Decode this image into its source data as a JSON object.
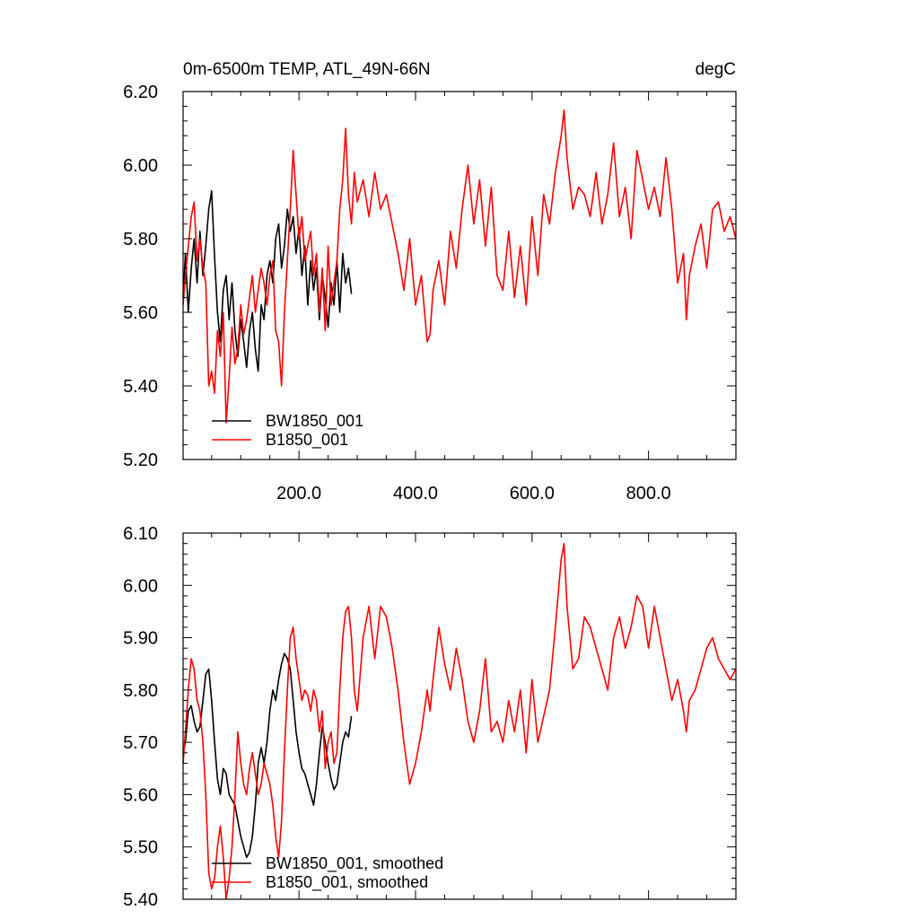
{
  "chart_data": [
    {
      "type": "line",
      "title": "0m-6500m TEMP, ATL_49N-66N",
      "units": "degC",
      "xlim": [
        1,
        950
      ],
      "ylim": [
        5.2,
        6.2
      ],
      "grid": false,
      "legend_position": "bottom-left",
      "xtick_values": [
        200,
        400,
        600,
        800
      ],
      "xtick_labels": [
        "200.0",
        "400.0",
        "600.0",
        "800.0"
      ],
      "ytick_values": [
        5.2,
        5.4,
        5.6,
        5.8,
        6.0,
        6.2
      ],
      "ytick_labels": [
        "5.20",
        "5.40",
        "5.60",
        "5.80",
        "6.00",
        "6.20"
      ],
      "series": [
        {
          "name": "BW1850_001",
          "color": "#000000",
          "x": [
            1,
            5,
            10,
            15,
            20,
            25,
            30,
            35,
            40,
            45,
            50,
            55,
            60,
            65,
            70,
            75,
            80,
            85,
            90,
            95,
            100,
            105,
            110,
            115,
            120,
            125,
            130,
            135,
            140,
            145,
            150,
            155,
            160,
            165,
            170,
            175,
            180,
            185,
            190,
            195,
            200,
            205,
            210,
            215,
            220,
            225,
            230,
            235,
            240,
            245,
            250,
            255,
            260,
            265,
            270,
            275,
            280,
            285,
            290
          ],
          "y": [
            5.64,
            5.76,
            5.6,
            5.72,
            5.8,
            5.68,
            5.82,
            5.7,
            5.78,
            5.88,
            5.93,
            5.75,
            5.6,
            5.52,
            5.66,
            5.7,
            5.58,
            5.68,
            5.55,
            5.48,
            5.58,
            5.52,
            5.45,
            5.55,
            5.6,
            5.5,
            5.44,
            5.62,
            5.58,
            5.7,
            5.74,
            5.68,
            5.8,
            5.84,
            5.72,
            5.78,
            5.88,
            5.82,
            5.86,
            5.76,
            5.83,
            5.7,
            5.78,
            5.62,
            5.74,
            5.66,
            5.72,
            5.58,
            5.7,
            5.64,
            5.56,
            5.68,
            5.62,
            5.74,
            5.6,
            5.76,
            5.68,
            5.72,
            5.65
          ]
        },
        {
          "name": "B1850_001",
          "color": "#ff0000",
          "x": [
            1,
            5,
            10,
            15,
            20,
            25,
            30,
            35,
            40,
            45,
            50,
            55,
            60,
            65,
            70,
            75,
            80,
            85,
            90,
            95,
            100,
            105,
            110,
            115,
            120,
            125,
            130,
            135,
            140,
            145,
            150,
            155,
            160,
            165,
            170,
            175,
            180,
            185,
            190,
            195,
            200,
            205,
            210,
            215,
            220,
            225,
            230,
            235,
            240,
            245,
            250,
            255,
            260,
            265,
            270,
            275,
            280,
            285,
            290,
            295,
            300,
            310,
            320,
            330,
            340,
            350,
            360,
            370,
            380,
            390,
            400,
            410,
            420,
            425,
            430,
            440,
            450,
            460,
            470,
            480,
            490,
            500,
            510,
            520,
            530,
            540,
            550,
            560,
            570,
            580,
            590,
            600,
            610,
            620,
            630,
            640,
            650,
            655,
            660,
            670,
            680,
            690,
            700,
            710,
            720,
            730,
            740,
            750,
            760,
            770,
            780,
            790,
            800,
            810,
            820,
            830,
            840,
            850,
            860,
            865,
            870,
            880,
            890,
            900,
            910,
            920,
            930,
            940,
            950
          ],
          "y": [
            5.62,
            5.7,
            5.78,
            5.86,
            5.9,
            5.74,
            5.8,
            5.72,
            5.68,
            5.4,
            5.44,
            5.38,
            5.55,
            5.48,
            5.6,
            5.3,
            5.42,
            5.56,
            5.46,
            5.5,
            5.62,
            5.54,
            5.58,
            5.64,
            5.7,
            5.6,
            5.66,
            5.72,
            5.68,
            5.62,
            5.7,
            5.74,
            5.55,
            5.52,
            5.4,
            5.6,
            5.74,
            5.88,
            6.04,
            5.92,
            5.8,
            5.86,
            5.74,
            5.78,
            5.82,
            5.7,
            5.76,
            5.6,
            5.72,
            5.55,
            5.78,
            5.62,
            5.68,
            5.74,
            5.88,
            5.96,
            6.1,
            5.92,
            5.84,
            5.98,
            5.9,
            5.96,
            5.86,
            5.98,
            5.88,
            5.92,
            5.84,
            5.76,
            5.66,
            5.8,
            5.62,
            5.7,
            5.52,
            5.54,
            5.66,
            5.74,
            5.62,
            5.82,
            5.72,
            5.88,
            6.0,
            5.84,
            5.96,
            5.78,
            5.94,
            5.7,
            5.66,
            5.82,
            5.64,
            5.78,
            5.62,
            5.86,
            5.7,
            5.92,
            5.84,
            5.98,
            6.08,
            6.15,
            6.02,
            5.88,
            5.94,
            5.92,
            5.86,
            5.98,
            5.84,
            5.92,
            6.06,
            5.86,
            5.94,
            5.8,
            6.04,
            5.96,
            5.88,
            5.94,
            5.86,
            6.02,
            5.88,
            5.68,
            5.76,
            5.58,
            5.7,
            5.78,
            5.84,
            5.72,
            5.88,
            5.9,
            5.82,
            5.86,
            5.8
          ]
        }
      ]
    },
    {
      "type": "line",
      "title": "",
      "xlim": [
        1,
        950
      ],
      "ylim": [
        5.4,
        6.1
      ],
      "grid": false,
      "legend_position": "bottom-left",
      "ytick_values": [
        5.4,
        5.5,
        5.6,
        5.7,
        5.8,
        5.9,
        6.0,
        6.1
      ],
      "ytick_labels": [
        "5.40",
        "5.50",
        "5.60",
        "5.70",
        "5.80",
        "5.90",
        "6.00",
        "6.10"
      ],
      "series": [
        {
          "name": "BW1850_001, smoothed",
          "color": "#000000",
          "x": [
            1,
            5,
            10,
            15,
            20,
            25,
            30,
            35,
            40,
            45,
            50,
            55,
            60,
            65,
            70,
            75,
            80,
            85,
            90,
            95,
            100,
            105,
            110,
            115,
            120,
            125,
            130,
            135,
            140,
            145,
            150,
            155,
            160,
            165,
            170,
            175,
            180,
            185,
            190,
            195,
            200,
            205,
            210,
            215,
            220,
            225,
            230,
            235,
            240,
            245,
            250,
            255,
            260,
            265,
            270,
            275,
            280,
            285,
            290
          ],
          "y": [
            5.68,
            5.7,
            5.76,
            5.77,
            5.74,
            5.72,
            5.73,
            5.78,
            5.83,
            5.84,
            5.78,
            5.7,
            5.63,
            5.6,
            5.65,
            5.64,
            5.6,
            5.59,
            5.58,
            5.55,
            5.52,
            5.5,
            5.48,
            5.49,
            5.52,
            5.58,
            5.66,
            5.69,
            5.66,
            5.7,
            5.76,
            5.8,
            5.78,
            5.82,
            5.85,
            5.87,
            5.86,
            5.84,
            5.78,
            5.72,
            5.68,
            5.65,
            5.64,
            5.62,
            5.6,
            5.58,
            5.62,
            5.68,
            5.73,
            5.7,
            5.66,
            5.63,
            5.61,
            5.62,
            5.66,
            5.7,
            5.72,
            5.71,
            5.75
          ]
        },
        {
          "name": "B1850_001, smoothed",
          "color": "#ff0000",
          "x": [
            1,
            5,
            10,
            15,
            20,
            25,
            30,
            35,
            40,
            45,
            50,
            55,
            60,
            65,
            70,
            75,
            80,
            85,
            90,
            95,
            100,
            105,
            110,
            115,
            120,
            125,
            130,
            135,
            140,
            145,
            150,
            155,
            160,
            165,
            170,
            175,
            180,
            185,
            190,
            195,
            200,
            205,
            210,
            215,
            220,
            225,
            230,
            235,
            240,
            245,
            250,
            255,
            260,
            265,
            270,
            275,
            280,
            285,
            290,
            295,
            300,
            310,
            320,
            330,
            340,
            350,
            360,
            370,
            380,
            390,
            400,
            410,
            420,
            425,
            430,
            440,
            450,
            460,
            470,
            480,
            490,
            500,
            510,
            520,
            530,
            540,
            550,
            560,
            570,
            580,
            590,
            600,
            610,
            620,
            630,
            640,
            650,
            655,
            660,
            670,
            680,
            690,
            700,
            710,
            720,
            730,
            740,
            750,
            760,
            770,
            780,
            790,
            800,
            810,
            820,
            830,
            840,
            850,
            860,
            865,
            870,
            880,
            890,
            900,
            910,
            920,
            930,
            940,
            950
          ],
          "y": [
            5.66,
            5.72,
            5.8,
            5.86,
            5.84,
            5.78,
            5.76,
            5.7,
            5.6,
            5.45,
            5.42,
            5.44,
            5.5,
            5.54,
            5.48,
            5.4,
            5.44,
            5.5,
            5.6,
            5.72,
            5.66,
            5.62,
            5.6,
            5.65,
            5.68,
            5.64,
            5.6,
            5.62,
            5.66,
            5.64,
            5.62,
            5.58,
            5.52,
            5.48,
            5.55,
            5.68,
            5.8,
            5.9,
            5.92,
            5.86,
            5.82,
            5.78,
            5.8,
            5.79,
            5.76,
            5.8,
            5.78,
            5.72,
            5.76,
            5.65,
            5.7,
            5.72,
            5.66,
            5.68,
            5.8,
            5.9,
            5.95,
            5.96,
            5.9,
            5.8,
            5.76,
            5.9,
            5.96,
            5.86,
            5.96,
            5.94,
            5.88,
            5.8,
            5.7,
            5.62,
            5.66,
            5.72,
            5.8,
            5.76,
            5.82,
            5.92,
            5.85,
            5.8,
            5.88,
            5.82,
            5.74,
            5.7,
            5.76,
            5.86,
            5.72,
            5.74,
            5.7,
            5.78,
            5.72,
            5.8,
            5.68,
            5.82,
            5.7,
            5.75,
            5.8,
            5.92,
            6.05,
            6.08,
            5.96,
            5.84,
            5.86,
            5.94,
            5.92,
            5.88,
            5.84,
            5.8,
            5.9,
            5.94,
            5.88,
            5.92,
            5.98,
            5.96,
            5.88,
            5.96,
            5.9,
            5.84,
            5.78,
            5.82,
            5.76,
            5.72,
            5.78,
            5.8,
            5.84,
            5.88,
            5.9,
            5.86,
            5.84,
            5.82,
            5.84
          ]
        }
      ]
    }
  ]
}
